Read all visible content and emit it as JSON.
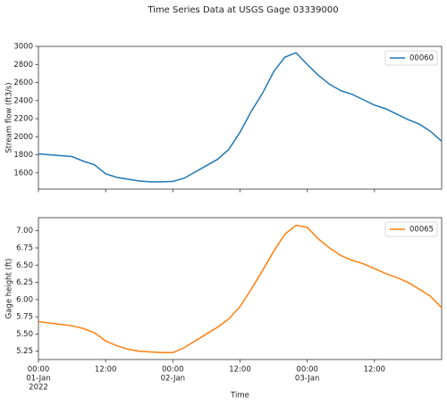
{
  "title": "Time Series Data at USGS Gage 03339000",
  "chart_data": [
    {
      "type": "line",
      "ylabel": "Stream flow (ft3/s)",
      "legend": "upper right",
      "x": [
        "2022-01-01T00:00",
        "2022-01-01T02:00",
        "2022-01-01T04:00",
        "2022-01-01T06:00",
        "2022-01-01T08:00",
        "2022-01-01T10:00",
        "2022-01-01T12:00",
        "2022-01-01T14:00",
        "2022-01-01T16:00",
        "2022-01-01T18:00",
        "2022-01-01T20:00",
        "2022-01-01T22:00",
        "2022-01-02T00:00",
        "2022-01-02T02:00",
        "2022-01-02T04:00",
        "2022-01-02T06:00",
        "2022-01-02T08:00",
        "2022-01-02T10:00",
        "2022-01-02T12:00",
        "2022-01-02T14:00",
        "2022-01-02T16:00",
        "2022-01-02T18:00",
        "2022-01-02T20:00",
        "2022-01-02T22:00",
        "2022-01-03T00:00",
        "2022-01-03T02:00",
        "2022-01-03T04:00",
        "2022-01-03T06:00",
        "2022-01-03T08:00",
        "2022-01-03T10:00",
        "2022-01-03T12:00",
        "2022-01-03T14:00",
        "2022-01-03T16:00",
        "2022-01-03T18:00",
        "2022-01-03T20:00",
        "2022-01-03T22:00",
        "2022-01-04T00:00"
      ],
      "series": [
        {
          "name": "00060",
          "color": "#1f77b4",
          "values": [
            1810,
            1800,
            1790,
            1780,
            1730,
            1690,
            1590,
            1550,
            1530,
            1510,
            1500,
            1500,
            1505,
            1540,
            1610,
            1680,
            1750,
            1860,
            2050,
            2280,
            2480,
            2720,
            2880,
            2930,
            2800,
            2680,
            2580,
            2510,
            2470,
            2410,
            2350,
            2310,
            2250,
            2190,
            2140,
            2060,
            1950
          ]
        }
      ],
      "xlim": [
        "2022-01-01T00:00",
        "2022-01-04T00:00"
      ],
      "xticks": [
        "2022-01-01T00:00",
        "2022-01-01T12:00",
        "2022-01-02T00:00",
        "2022-01-02T12:00",
        "2022-01-03T00:00",
        "2022-01-03T12:00"
      ],
      "ylim": [
        1420,
        3000
      ],
      "yticks": [
        1600,
        1800,
        2000,
        2200,
        2400,
        2600,
        2800,
        3000
      ]
    },
    {
      "type": "line",
      "ylabel": "Gage height (ft)",
      "xlabel": "Time",
      "legend": "upper right",
      "x": [
        "2022-01-01T00:00",
        "2022-01-01T02:00",
        "2022-01-01T04:00",
        "2022-01-01T06:00",
        "2022-01-01T08:00",
        "2022-01-01T10:00",
        "2022-01-01T12:00",
        "2022-01-01T14:00",
        "2022-01-01T16:00",
        "2022-01-01T18:00",
        "2022-01-01T20:00",
        "2022-01-01T22:00",
        "2022-01-02T00:00",
        "2022-01-02T02:00",
        "2022-01-02T04:00",
        "2022-01-02T06:00",
        "2022-01-02T08:00",
        "2022-01-02T10:00",
        "2022-01-02T12:00",
        "2022-01-02T14:00",
        "2022-01-02T16:00",
        "2022-01-02T18:00",
        "2022-01-02T20:00",
        "2022-01-02T22:00",
        "2022-01-03T00:00",
        "2022-01-03T02:00",
        "2022-01-03T04:00",
        "2022-01-03T06:00",
        "2022-01-03T08:00",
        "2022-01-03T10:00",
        "2022-01-03T12:00",
        "2022-01-03T14:00",
        "2022-01-03T16:00",
        "2022-01-03T18:00",
        "2022-01-03T20:00",
        "2022-01-03T22:00",
        "2022-01-04T00:00"
      ],
      "series": [
        {
          "name": "00065",
          "color": "#ff7f0e",
          "values": [
            5.68,
            5.66,
            5.64,
            5.62,
            5.58,
            5.52,
            5.4,
            5.33,
            5.28,
            5.25,
            5.24,
            5.23,
            5.23,
            5.3,
            5.4,
            5.5,
            5.6,
            5.72,
            5.9,
            6.15,
            6.42,
            6.7,
            6.95,
            7.08,
            7.05,
            6.88,
            6.75,
            6.64,
            6.57,
            6.52,
            6.45,
            6.38,
            6.32,
            6.25,
            6.15,
            6.05,
            5.88
          ]
        }
      ],
      "xlim": [
        "2022-01-01T00:00",
        "2022-01-04T00:00"
      ],
      "xticks": [
        {
          "value": "2022-01-01T00:00",
          "label": [
            "00:00",
            "01-Jan",
            "2022"
          ]
        },
        {
          "value": "2022-01-01T12:00",
          "label": [
            "12:00"
          ]
        },
        {
          "value": "2022-01-02T00:00",
          "label": [
            "00:00",
            "02-Jan"
          ]
        },
        {
          "value": "2022-01-02T12:00",
          "label": [
            "12:00"
          ]
        },
        {
          "value": "2022-01-03T00:00",
          "label": [
            "00:00",
            "03-Jan"
          ]
        },
        {
          "value": "2022-01-03T12:00",
          "label": [
            "12:00"
          ]
        }
      ],
      "ylim": [
        5.13,
        7.19
      ],
      "yticks": [
        5.25,
        {
          "value": 5.5,
          "label": "5.50"
        },
        5.75,
        {
          "value": 6,
          "label": "6.00"
        },
        6.25,
        {
          "value": 6.5,
          "label": "6.50"
        },
        6.75,
        {
          "value": 7,
          "label": "7.00"
        }
      ]
    }
  ]
}
